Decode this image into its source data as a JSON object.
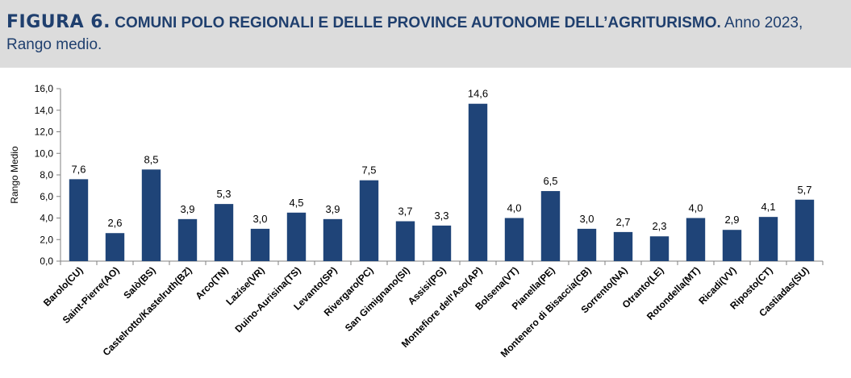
{
  "header": {
    "figure_label": "FIGURA 6.",
    "heading": "COMUNI POLO REGIONALI E DELLE PROVINCE AUTONOME DELL’AGRITURISMO.",
    "subtitle": "Anno 2023, Rango medio."
  },
  "chart_data": {
    "type": "bar",
    "categories": [
      "Barolo(CU)",
      "Saint-Pierre(AO)",
      "Salò(BS)",
      "Castelrotto/Kastelruth(BZ)",
      "Arco(TN)",
      "Lazise(VR)",
      "Duino-Aurisina(TS)",
      "Levanto(SP)",
      "Rivergaro(PC)",
      "San Gimignano(SI)",
      "Assisi(PG)",
      "Montefiore dell'Aso(AP)",
      "Bolsena(VT)",
      "Pianella(PE)",
      "Montenero di Bisaccia(CB)",
      "Sorrento(NA)",
      "Otranto(LE)",
      "Rotondella(MT)",
      "Ricadi(VV)",
      "Riposto(CT)",
      "Castiadas(SU)"
    ],
    "values": [
      7.6,
      2.6,
      8.5,
      3.9,
      5.3,
      3.0,
      4.5,
      3.9,
      7.5,
      3.7,
      3.3,
      14.6,
      4.0,
      6.5,
      3.0,
      2.7,
      2.3,
      4.0,
      2.9,
      4.1,
      5.7
    ],
    "value_labels": [
      "7,6",
      "2,6",
      "8,5",
      "3,9",
      "5,3",
      "3,0",
      "4,5",
      "3,9",
      "7,5",
      "3,7",
      "3,3",
      "14,6",
      "4,0",
      "6,5",
      "3,0",
      "2,7",
      "2,3",
      "4,0",
      "2,9",
      "4,1",
      "5,7"
    ],
    "yticks": [
      0,
      2,
      4,
      6,
      8,
      10,
      12,
      14,
      16
    ],
    "ytick_labels": [
      "0,0",
      "2,0",
      "4,0",
      "6,0",
      "8,0",
      "10,0",
      "12,0",
      "14,0",
      "16,0"
    ],
    "ylim": [
      0,
      16
    ],
    "ylabel": "Rango Medio",
    "xlabel": "",
    "grid": false,
    "legend": "none",
    "colors": {
      "bar": "#1f4478",
      "title": "#1f3f6e",
      "axis": "#808080",
      "text": "#000000",
      "background": "#dcdcdc",
      "plot_background": "#ffffff"
    }
  }
}
